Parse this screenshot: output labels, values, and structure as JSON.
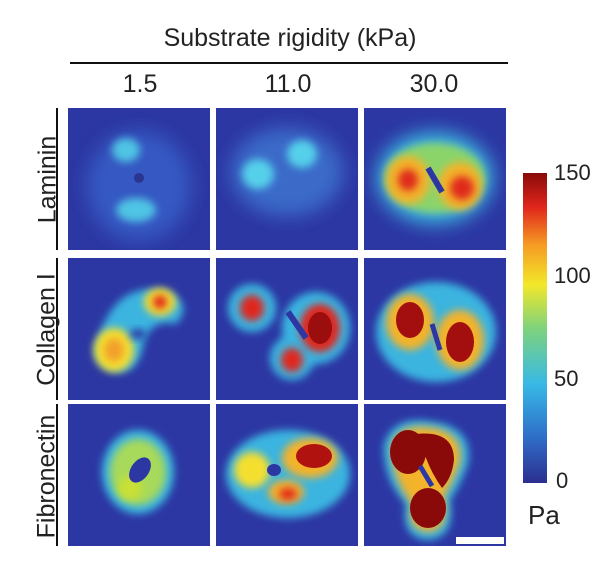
{
  "figure": {
    "title": "Substrate rigidity (kPa)",
    "columns": [
      "1.5",
      "11.0",
      "30.0"
    ],
    "rows": [
      "Laminin",
      "Collagen I",
      "Fibronectin"
    ]
  },
  "colorbar": {
    "ticks": [
      "150",
      "100",
      "50",
      "0"
    ],
    "unit": "Pa",
    "range": [
      0,
      150
    ],
    "colors": [
      "#2c2e8f",
      "#2e6fc9",
      "#38b9e6",
      "#7fd37b",
      "#f3e82a",
      "#f59a23",
      "#e0261c",
      "#8a0a0a"
    ]
  },
  "panels": [
    {
      "row": "Laminin",
      "column": "1.5",
      "peak_color": "#4fc4e4"
    },
    {
      "row": "Laminin",
      "column": "11.0",
      "peak_color": "#55d0ea"
    },
    {
      "row": "Laminin",
      "column": "30.0",
      "peak_color": "#e02a1c"
    },
    {
      "row": "Collagen I",
      "column": "1.5",
      "peak_color": "#f2a02a"
    },
    {
      "row": "Collagen I",
      "column": "11.0",
      "peak_color": "#9c0e0e"
    },
    {
      "row": "Collagen I",
      "column": "30.0",
      "peak_color": "#a30f0f"
    },
    {
      "row": "Fibronectin",
      "column": "1.5",
      "peak_color": "#c9e035"
    },
    {
      "row": "Fibronectin",
      "column": "11.0",
      "peak_color": "#b0120f"
    },
    {
      "row": "Fibronectin",
      "column": "30.0",
      "peak_color": "#8a0a0a"
    }
  ]
}
